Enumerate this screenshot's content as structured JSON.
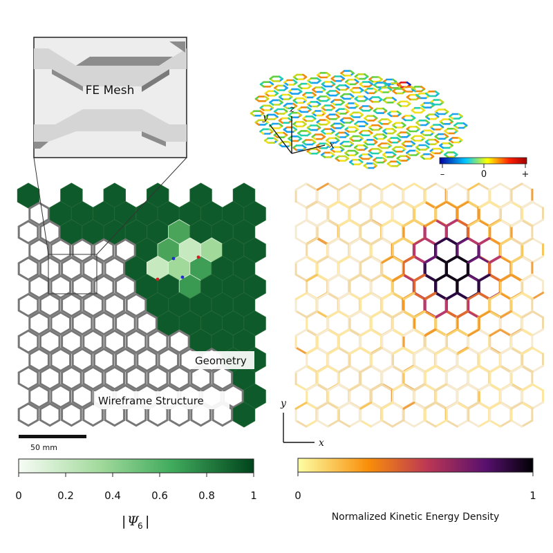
{
  "inset": {
    "label": "FE Mesh"
  },
  "left_panel": {
    "geometry_label": "Geometry",
    "wireframe_label": "Wireframe Structure",
    "scale_bar_label": "50 mm",
    "colorbar": {
      "ticks": [
        "0",
        "0.2",
        "0.4",
        "0.6",
        "0.8",
        "1"
      ],
      "label_left_bar": "|",
      "label_symbol": "Ψ",
      "label_subscript": "6",
      "label_right_bar": "|",
      "colors": [
        "#f7fcf5",
        "#a1d99b",
        "#41ab5d",
        "#00441b"
      ]
    }
  },
  "top_right": {
    "axis_x": "x",
    "axis_y": "y",
    "axis_z": "z",
    "colorbar": {
      "ticks": [
        "–",
        "0",
        "+"
      ],
      "colors": [
        "#0000a0",
        "#00c8ff",
        "#ffff00",
        "#ff2000",
        "#a00000"
      ]
    }
  },
  "right_panel": {
    "axis_x": "x",
    "axis_y": "y",
    "colorbar": {
      "ticks": [
        "0",
        "1"
      ],
      "label": "Normalized Kinetic Energy Density",
      "colors": [
        "#fcffa4",
        "#f98e09",
        "#bc3754",
        "#57106e",
        "#000004"
      ]
    }
  }
}
